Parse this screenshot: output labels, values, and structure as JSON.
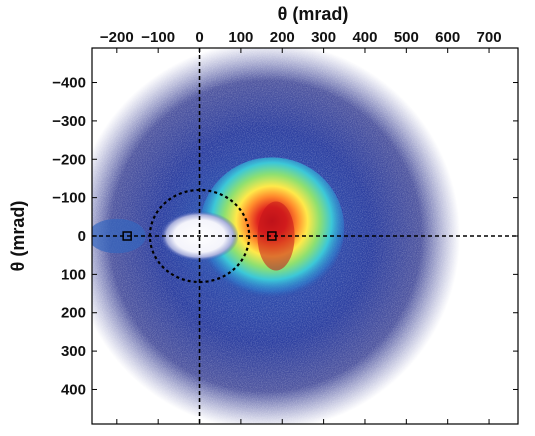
{
  "chart_data": {
    "type": "heatmap",
    "title": "",
    "xlabel": "θ (mrad)",
    "ylabel": "θ (mrad)",
    "xlim": [
      -260,
      770
    ],
    "ylim": [
      -490,
      490
    ],
    "y_axis_inverted": true,
    "x_axis_position": "top",
    "x_ticks": [
      -200,
      -100,
      0,
      100,
      200,
      300,
      400,
      500,
      600,
      700
    ],
    "x_tick_labels": [
      "−200",
      "−100",
      "0",
      "100",
      "200",
      "300",
      "400",
      "500",
      "600",
      "700"
    ],
    "y_ticks": [
      -400,
      -300,
      -200,
      -100,
      0,
      100,
      200,
      300,
      400
    ],
    "y_tick_labels": [
      "−400",
      "−300",
      "−200",
      "−100",
      "0",
      "100",
      "200",
      "300",
      "400"
    ],
    "colormap": [
      "#2b2f8f",
      "#2f57b6",
      "#2f9bd8",
      "#3fd0d0",
      "#9be26a",
      "#ffe84a",
      "#ff9a30",
      "#e8201e",
      "#a80f14"
    ],
    "background_color": "#ffffff",
    "halo": {
      "center": [
        160,
        0
      ],
      "radius": 470,
      "fill_color": "#2a3fa0"
    },
    "hot_spot": {
      "center": [
        175,
        -20
      ],
      "peak_region": [
        [
          140,
          -90
        ],
        [
          230,
          90
        ]
      ],
      "peak_color": "#c4141a"
    },
    "hole": {
      "center": [
        0,
        0
      ],
      "rx": 95,
      "ry": 65,
      "color": "#ffffff"
    },
    "guide_lines": [
      {
        "kind": "vertical",
        "x": 0,
        "style": "dashed"
      },
      {
        "kind": "horizontal",
        "y": 0,
        "style": "dashed"
      }
    ],
    "dashed_circle": {
      "center": [
        0,
        0
      ],
      "radius": 120
    },
    "markers": [
      {
        "x": -175,
        "y": 0,
        "shape": "square"
      },
      {
        "x": 175,
        "y": 0,
        "shape": "square"
      }
    ]
  }
}
